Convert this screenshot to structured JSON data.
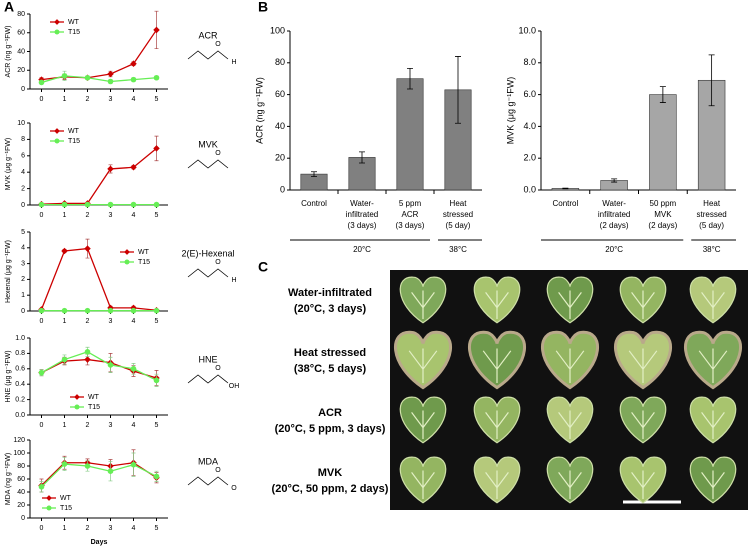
{
  "panel_labels": [
    "A",
    "B",
    "C"
  ],
  "chart_data": [
    {
      "type": "line",
      "annotation": "ACR",
      "structure_labels": [
        "O",
        "H"
      ],
      "ylabel": "ACR (ng g⁻¹FW)",
      "x": [
        0,
        1,
        2,
        3,
        4,
        5
      ],
      "xlim": [
        -0.5,
        5.5
      ],
      "xticks": [
        0,
        1,
        2,
        3,
        4,
        5
      ],
      "ylim": [
        0,
        80
      ],
      "yticks": [
        0,
        20,
        40,
        60,
        80
      ],
      "legend": "upper left",
      "series": [
        {
          "name": "WT",
          "color": "#cc0000",
          "values": [
            10,
            13,
            12,
            16,
            27,
            63
          ],
          "errors": [
            2,
            3,
            2,
            3,
            2,
            20
          ]
        },
        {
          "name": "T15",
          "color": "#66ee55",
          "values": [
            7,
            14,
            12,
            8,
            10,
            12
          ],
          "errors": [
            2,
            5,
            2,
            2,
            2,
            2
          ]
        }
      ]
    },
    {
      "type": "line",
      "annotation": "MVK",
      "structure_labels": [
        "O"
      ],
      "ylabel": "MVK (μg g⁻¹FW)",
      "x": [
        0,
        1,
        2,
        3,
        4,
        5
      ],
      "xlim": [
        -0.5,
        5.5
      ],
      "xticks": [
        0,
        1,
        2,
        3,
        4,
        5
      ],
      "ylim": [
        0,
        10
      ],
      "yticks": [
        0,
        2,
        4,
        6,
        8,
        10
      ],
      "legend": "upper left",
      "series": [
        {
          "name": "WT",
          "color": "#cc0000",
          "values": [
            0.1,
            0.2,
            0.2,
            4.4,
            4.6,
            6.9
          ],
          "errors": [
            0.05,
            0.1,
            0.1,
            0.5,
            0.2,
            1.5
          ]
        },
        {
          "name": "T15",
          "color": "#66ee55",
          "values": [
            0.05,
            0.05,
            0.05,
            0.05,
            0.05,
            0.05
          ],
          "errors": [
            0.02,
            0.02,
            0.02,
            0.02,
            0.02,
            0.02
          ]
        }
      ]
    },
    {
      "type": "line",
      "annotation": "2(E)-Hexenal",
      "structure_labels": [
        "O",
        "H"
      ],
      "ylabel": "Hexenal (μg g⁻¹FW)",
      "x": [
        0,
        1,
        2,
        3,
        4,
        5
      ],
      "xlim": [
        -0.5,
        5.5
      ],
      "xticks": [
        0,
        1,
        2,
        3,
        4,
        5
      ],
      "ylim": [
        0,
        5
      ],
      "yticks": [
        0,
        1,
        2,
        3,
        4,
        5
      ],
      "legend": "upper right",
      "series": [
        {
          "name": "WT",
          "color": "#cc0000",
          "values": [
            0.1,
            3.8,
            3.95,
            0.2,
            0.2,
            0.05
          ],
          "errors": [
            0.05,
            0.1,
            0.6,
            0.1,
            0.1,
            0.05
          ]
        },
        {
          "name": "T15",
          "color": "#66ee55",
          "values": [
            0.02,
            0.02,
            0.02,
            0.02,
            0.02,
            0.02
          ],
          "errors": [
            0.01,
            0.01,
            0.01,
            0.01,
            0.01,
            0.01
          ]
        }
      ]
    },
    {
      "type": "line",
      "annotation": "HNE",
      "structure_labels": [
        "O",
        "OH"
      ],
      "ylabel": "HNE (μg g⁻¹FW)",
      "x": [
        0,
        1,
        2,
        3,
        4,
        5
      ],
      "xlim": [
        -0.5,
        5.5
      ],
      "xticks": [
        0,
        1,
        2,
        3,
        4,
        5
      ],
      "ylim": [
        0,
        1
      ],
      "yticks": [
        {
          "value": 0,
          "label": "0.0"
        },
        0.2,
        0.4,
        0.6,
        0.8,
        {
          "value": 1,
          "label": "1.0"
        }
      ],
      "legend": "lower center",
      "series": [
        {
          "name": "WT",
          "color": "#cc0000",
          "values": [
            0.55,
            0.7,
            0.72,
            0.68,
            0.57,
            0.48
          ],
          "errors": [
            0.04,
            0.05,
            0.07,
            0.12,
            0.07,
            0.1
          ]
        },
        {
          "name": "T15",
          "color": "#66ee55",
          "values": [
            0.55,
            0.72,
            0.82,
            0.65,
            0.6,
            0.45
          ],
          "errors": [
            0.04,
            0.06,
            0.06,
            0.1,
            0.07,
            0.08
          ]
        }
      ]
    },
    {
      "type": "line",
      "annotation": "MDA",
      "structure_labels": [
        "O",
        "O"
      ],
      "ylabel": "MDA (ng g⁻¹FW)",
      "xlabel": "Days",
      "x": [
        0,
        1,
        2,
        3,
        4,
        5
      ],
      "xlim": [
        -0.5,
        5.5
      ],
      "xticks": [
        0,
        1,
        2,
        3,
        4,
        5
      ],
      "ylim": [
        0,
        120
      ],
      "yticks": [
        0,
        20,
        40,
        60,
        80,
        100,
        120
      ],
      "legend": "lower left",
      "series": [
        {
          "name": "WT",
          "color": "#cc0000",
          "values": [
            50,
            85,
            85,
            80,
            85,
            62
          ],
          "errors": [
            10,
            10,
            6,
            10,
            20,
            8
          ]
        },
        {
          "name": "T15",
          "color": "#66ee55",
          "values": [
            48,
            83,
            80,
            72,
            82,
            64
          ],
          "errors": [
            8,
            10,
            8,
            15,
            18,
            8
          ]
        }
      ]
    },
    {
      "type": "bar",
      "ylabel": "ACR (ng g⁻¹FW)",
      "color": "#808080",
      "ylim": [
        0,
        100
      ],
      "yticks": [
        0,
        20,
        40,
        60,
        80,
        100
      ],
      "categories": [
        [
          "Control"
        ],
        [
          "Water-",
          "infiltrated",
          "(3 days)"
        ],
        [
          "5 ppm",
          "ACR",
          "(3 days)"
        ],
        [
          "Heat",
          "stressed",
          "(5 day)"
        ]
      ],
      "values": [
        10,
        20.5,
        70,
        63
      ],
      "errors": [
        1.5,
        3.5,
        6.5,
        21
      ],
      "group_labels": [
        "20°C",
        "38°C"
      ]
    },
    {
      "type": "bar",
      "ylabel": "MVK (μg g⁻¹FW)",
      "color": "#a6a6a6",
      "ylim": [
        0,
        10
      ],
      "yticks": [
        {
          "value": 0,
          "label": "0.0"
        },
        {
          "value": 2,
          "label": "2.0"
        },
        {
          "value": 4,
          "label": "4.0"
        },
        {
          "value": 6,
          "label": "6.0"
        },
        {
          "value": 8,
          "label": "8.0"
        },
        {
          "value": 10,
          "label": "10.0"
        }
      ],
      "categories": [
        [
          "Control"
        ],
        [
          "Water-",
          "infiltrated",
          "(2 days)"
        ],
        [
          "50 ppm",
          "MVK",
          "(2 days)"
        ],
        [
          "Heat",
          "stressed",
          "(5 day)"
        ]
      ],
      "values": [
        0.1,
        0.6,
        6.0,
        6.9
      ],
      "errors": [
        0.02,
        0.1,
        0.5,
        1.6
      ],
      "group_labels": [
        "20°C",
        "38°C"
      ]
    }
  ],
  "panel_c": {
    "rows": [
      [
        "Water-infiltrated",
        "(20°C, 3 days)"
      ],
      [
        "Heat stressed",
        "(38°C, 5 days)"
      ],
      [
        "ACR",
        "(20°C, 5 ppm, 3 days)"
      ],
      [
        "MVK",
        "(20°C, 50 ppm, 2 days)"
      ]
    ]
  }
}
